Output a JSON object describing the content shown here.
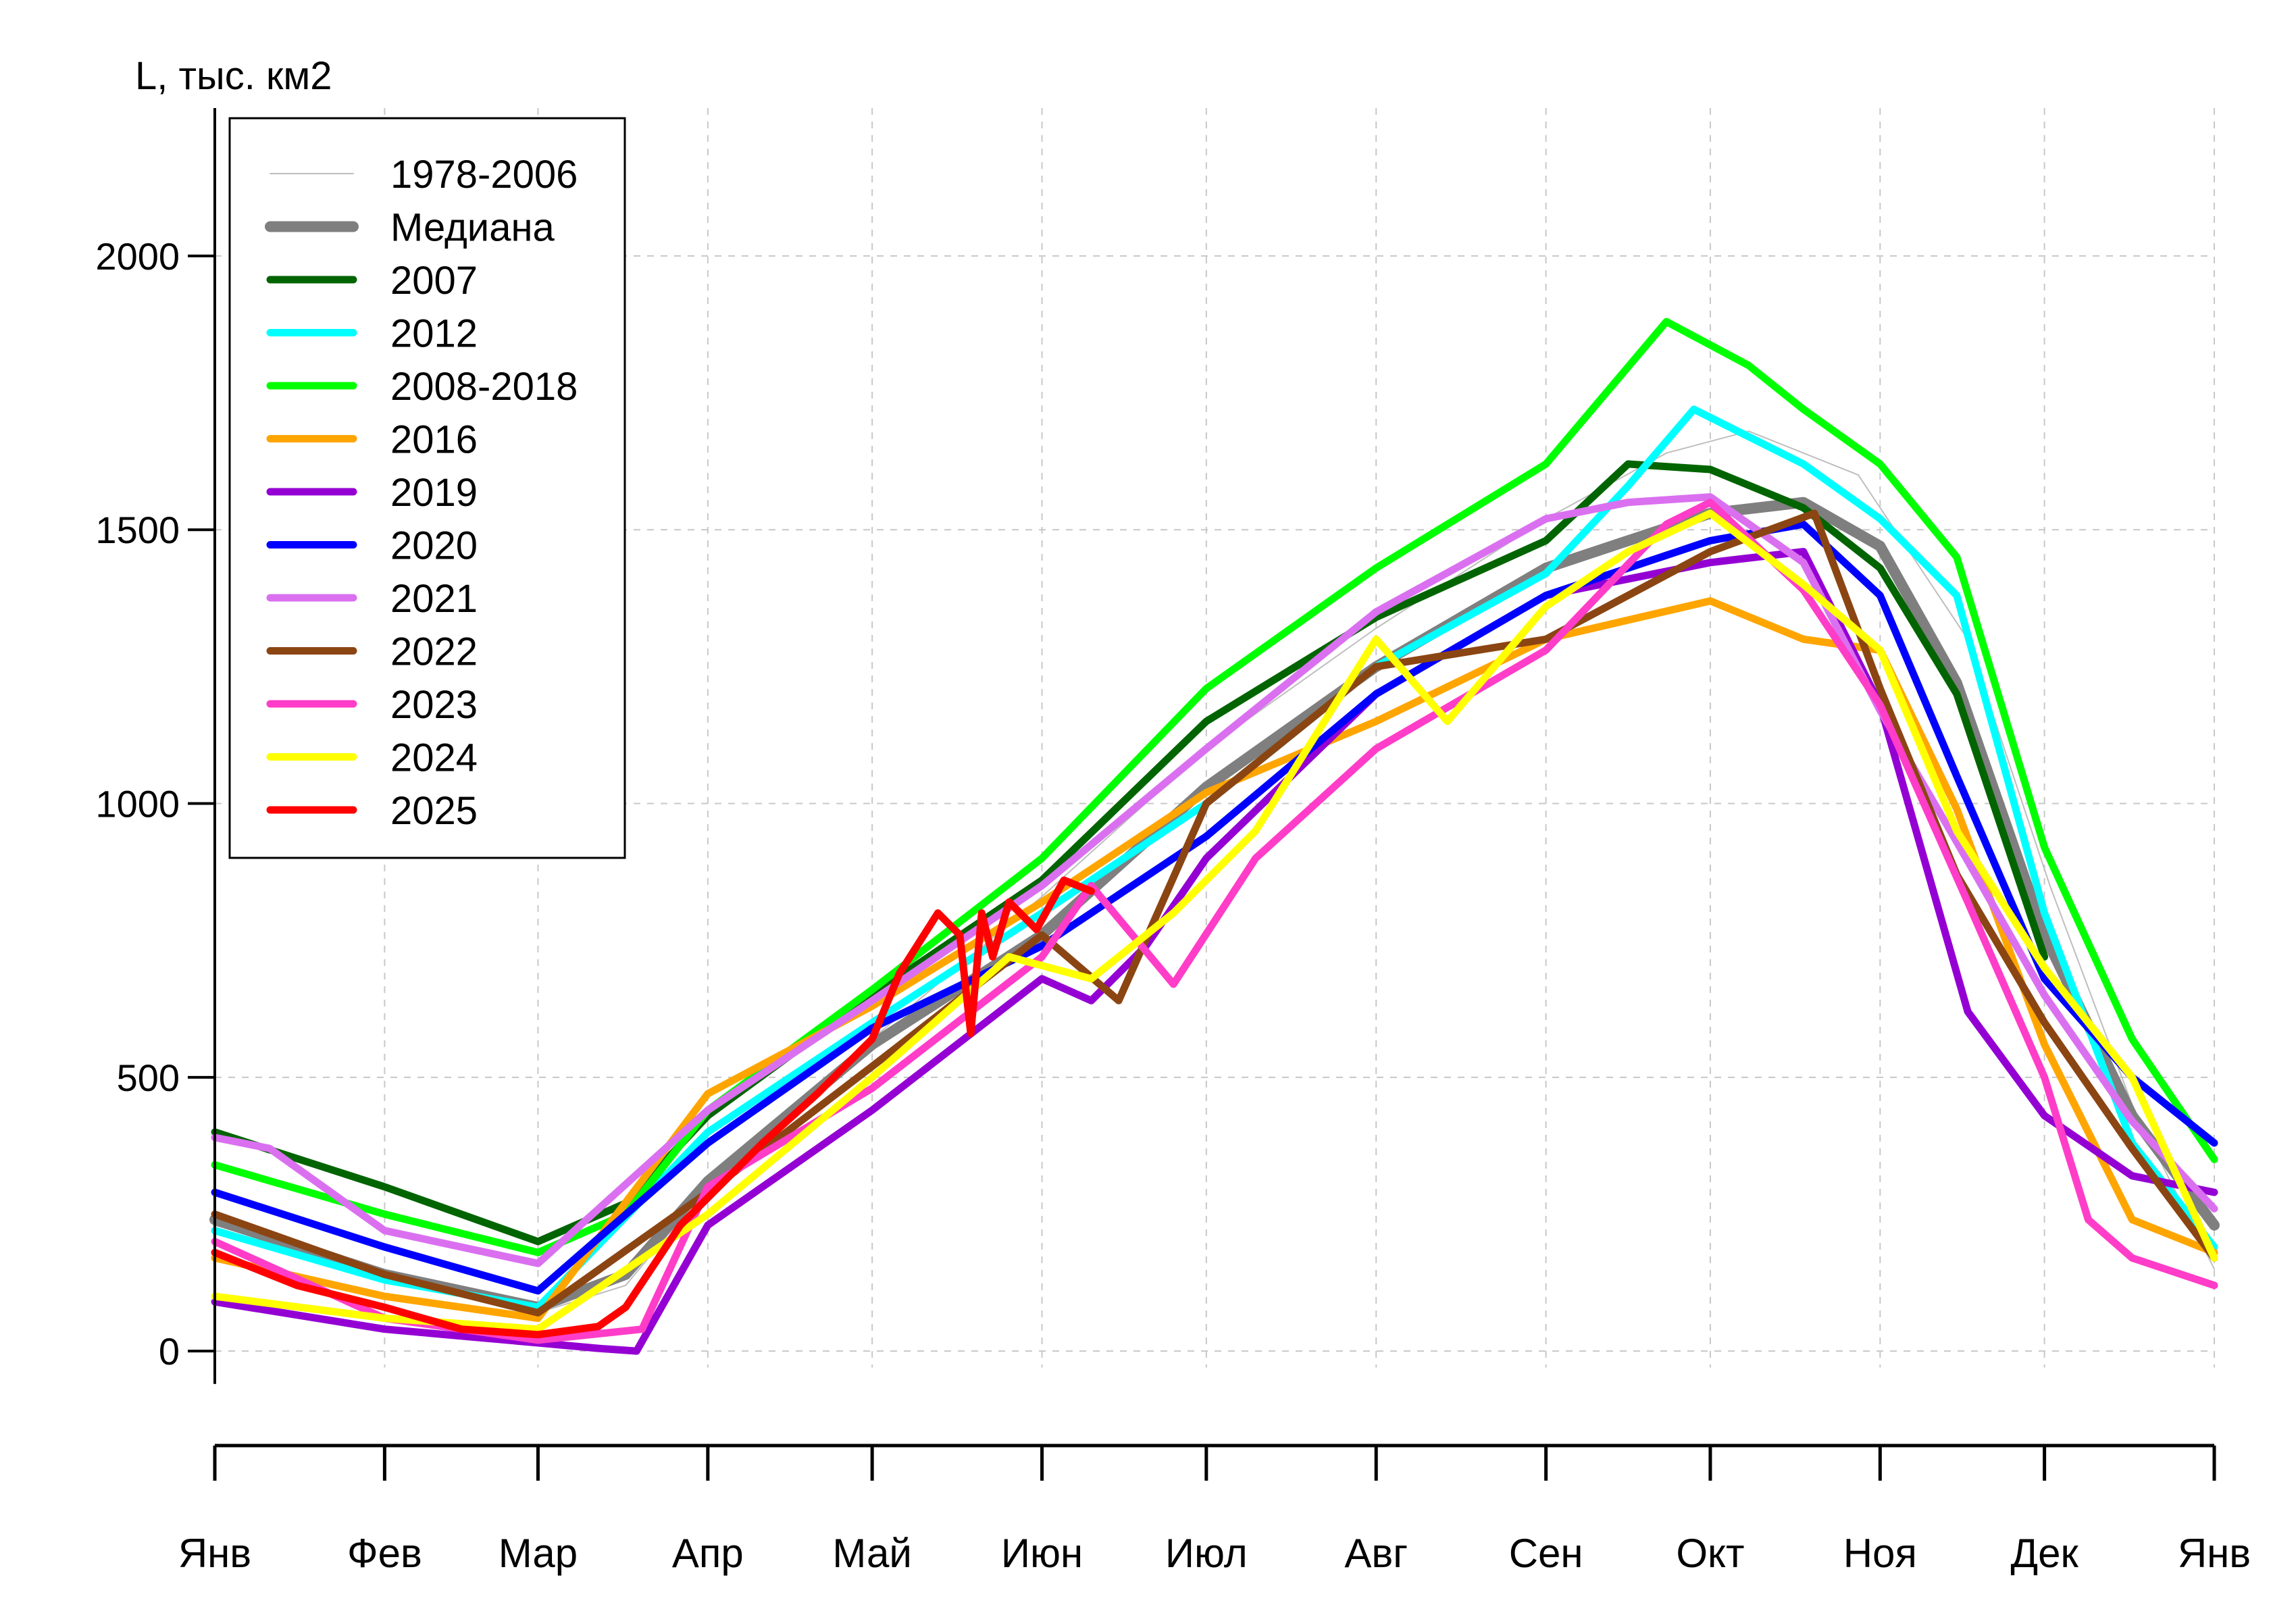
{
  "chart_data": {
    "type": "line",
    "ylabel": "L, тыс. км2",
    "ylim": [
      -80,
      2270
    ],
    "yticks": [
      0,
      500,
      1000,
      1500,
      2000
    ],
    "xlim": [
      0,
      365
    ],
    "month_ticks": [
      0,
      31,
      59,
      90,
      120,
      151,
      181,
      212,
      243,
      273,
      304,
      334,
      365
    ],
    "month_labels": [
      "Янв",
      "Фев",
      "Мар",
      "Апр",
      "Май",
      "Июн",
      "Июл",
      "Авг",
      "Сен",
      "Окт",
      "Ноя",
      "Дек",
      "Янв"
    ],
    "grid": true,
    "legend_position": "top-left",
    "legend": [
      {
        "label": "1978-2006",
        "color": "#BEBEBE",
        "width": 2
      },
      {
        "label": "Медиана",
        "color": "#7F7F7F",
        "width": 16
      },
      {
        "label": "2007",
        "color": "#006400",
        "width": 11
      },
      {
        "label": "2012",
        "color": "#00FFFF",
        "width": 11
      },
      {
        "label": "2008-2018",
        "color": "#00FF00",
        "width": 11
      },
      {
        "label": "2016",
        "color": "#FFA500",
        "width": 11
      },
      {
        "label": "2019",
        "color": "#9400D3",
        "width": 11
      },
      {
        "label": "2020",
        "color": "#0000FF",
        "width": 11
      },
      {
        "label": "2021",
        "color": "#DA70F0",
        "width": 11
      },
      {
        "label": "2022",
        "color": "#8B4513",
        "width": 11
      },
      {
        "label": "2023",
        "color": "#FF3DC8",
        "width": 11
      },
      {
        "label": "2024",
        "color": "#FFFF00",
        "width": 11
      },
      {
        "label": "2025",
        "color": "#FF0000",
        "width": 11
      }
    ],
    "series": [
      {
        "name": "1978-2006",
        "color": "#BEBEBE",
        "width": 2,
        "x": [
          0,
          31,
          59,
          75,
          90,
          120,
          151,
          181,
          212,
          243,
          265,
          280,
          300,
          320,
          335,
          350,
          365
        ],
        "y": [
          230,
          140,
          70,
          120,
          300,
          570,
          830,
          1100,
          1320,
          1520,
          1640,
          1680,
          1600,
          1300,
          850,
          450,
          150
        ]
      },
      {
        "name": "Медиана",
        "color": "#7F7F7F",
        "width": 16,
        "x": [
          0,
          31,
          59,
          75,
          90,
          120,
          151,
          181,
          212,
          243,
          258,
          273,
          290,
          304,
          318,
          334,
          350,
          365
        ],
        "y": [
          240,
          140,
          80,
          140,
          310,
          560,
          760,
          1030,
          1250,
          1430,
          1480,
          1530,
          1550,
          1470,
          1220,
          760,
          430,
          230
        ]
      },
      {
        "name": "2007",
        "color": "#006400",
        "width": 11,
        "x": [
          0,
          31,
          59,
          75,
          90,
          120,
          151,
          181,
          212,
          243,
          258,
          273,
          290,
          304,
          318,
          334
        ],
        "y": [
          400,
          300,
          200,
          270,
          430,
          650,
          860,
          1150,
          1340,
          1480,
          1620,
          1610,
          1540,
          1430,
          1200,
          720
        ]
      },
      {
        "name": "2012",
        "color": "#00FFFF",
        "width": 11,
        "x": [
          0,
          31,
          59,
          90,
          120,
          151,
          181,
          212,
          243,
          258,
          270,
          290,
          304,
          318,
          334,
          350,
          365
        ],
        "y": [
          220,
          130,
          80,
          400,
          600,
          800,
          1000,
          1250,
          1420,
          1580,
          1720,
          1620,
          1520,
          1380,
          800,
          380,
          190
        ]
      },
      {
        "name": "2008-2018",
        "color": "#00FF00",
        "width": 11,
        "x": [
          0,
          31,
          59,
          75,
          90,
          120,
          151,
          181,
          212,
          243,
          265,
          280,
          290,
          304,
          318,
          334,
          350,
          365
        ],
        "y": [
          340,
          250,
          180,
          250,
          440,
          660,
          900,
          1210,
          1430,
          1620,
          1880,
          1800,
          1720,
          1620,
          1450,
          920,
          570,
          350
        ]
      },
      {
        "name": "2016",
        "color": "#FFA500",
        "width": 11,
        "x": [
          0,
          31,
          59,
          90,
          120,
          151,
          181,
          212,
          243,
          273,
          290,
          304,
          318,
          334,
          350,
          365
        ],
        "y": [
          170,
          100,
          60,
          470,
          630,
          820,
          1020,
          1150,
          1300,
          1370,
          1300,
          1280,
          990,
          560,
          240,
          180
        ]
      },
      {
        "name": "2019",
        "color": "#9400D3",
        "width": 11,
        "x": [
          0,
          31,
          59,
          70,
          77,
          90,
          120,
          151,
          160,
          170,
          181,
          212,
          243,
          273,
          290,
          304,
          320,
          334,
          350,
          365
        ],
        "y": [
          90,
          40,
          15,
          5,
          0,
          230,
          440,
          680,
          640,
          740,
          900,
          1200,
          1380,
          1440,
          1460,
          1180,
          620,
          430,
          320,
          290
        ]
      },
      {
        "name": "2020",
        "color": "#0000FF",
        "width": 11,
        "x": [
          0,
          31,
          59,
          90,
          120,
          151,
          181,
          212,
          243,
          273,
          290,
          304,
          318,
          334,
          350,
          365
        ],
        "y": [
          290,
          190,
          110,
          380,
          590,
          740,
          940,
          1200,
          1380,
          1480,
          1510,
          1380,
          1050,
          680,
          500,
          380
        ]
      },
      {
        "name": "2021",
        "color": "#DA70F0",
        "width": 11,
        "x": [
          0,
          10,
          31,
          59,
          90,
          120,
          151,
          181,
          212,
          243,
          258,
          273,
          290,
          304,
          318,
          334,
          350,
          365
        ],
        "y": [
          390,
          370,
          220,
          160,
          440,
          640,
          850,
          1100,
          1350,
          1520,
          1550,
          1560,
          1440,
          1170,
          930,
          650,
          420,
          260
        ]
      },
      {
        "name": "2022",
        "color": "#8B4513",
        "width": 11,
        "x": [
          0,
          31,
          59,
          90,
          120,
          151,
          165,
          181,
          212,
          243,
          273,
          292,
          304,
          318,
          334,
          350,
          365
        ],
        "y": [
          250,
          140,
          70,
          290,
          520,
          760,
          640,
          1000,
          1250,
          1300,
          1460,
          1530,
          1210,
          870,
          600,
          370,
          170
        ]
      },
      {
        "name": "2023",
        "color": "#FF3DC8",
        "width": 11,
        "x": [
          0,
          31,
          59,
          78,
          90,
          120,
          151,
          160,
          175,
          190,
          212,
          243,
          265,
          273,
          290,
          304,
          320,
          334,
          342,
          350,
          365
        ],
        "y": [
          200,
          60,
          20,
          40,
          300,
          480,
          720,
          850,
          670,
          900,
          1100,
          1280,
          1510,
          1550,
          1390,
          1180,
          820,
          500,
          240,
          170,
          120
        ]
      },
      {
        "name": "2024",
        "color": "#FFFF00",
        "width": 11,
        "x": [
          0,
          31,
          59,
          90,
          120,
          145,
          160,
          175,
          190,
          212,
          225,
          243,
          258,
          273,
          290,
          304,
          318,
          334,
          350,
          365
        ],
        "y": [
          100,
          60,
          40,
          250,
          500,
          720,
          680,
          800,
          950,
          1300,
          1150,
          1360,
          1460,
          1530,
          1400,
          1280,
          950,
          700,
          500,
          170
        ]
      },
      {
        "name": "2025",
        "color": "#FF0000",
        "width": 11,
        "x": [
          0,
          15,
          31,
          45,
          59,
          70,
          75,
          85,
          100,
          110,
          120,
          125,
          132,
          136,
          138,
          140,
          142,
          145,
          150,
          155,
          160
        ],
        "y": [
          180,
          120,
          80,
          40,
          30,
          45,
          80,
          230,
          380,
          470,
          570,
          690,
          800,
          760,
          580,
          800,
          720,
          820,
          770,
          860,
          840
        ]
      }
    ]
  }
}
